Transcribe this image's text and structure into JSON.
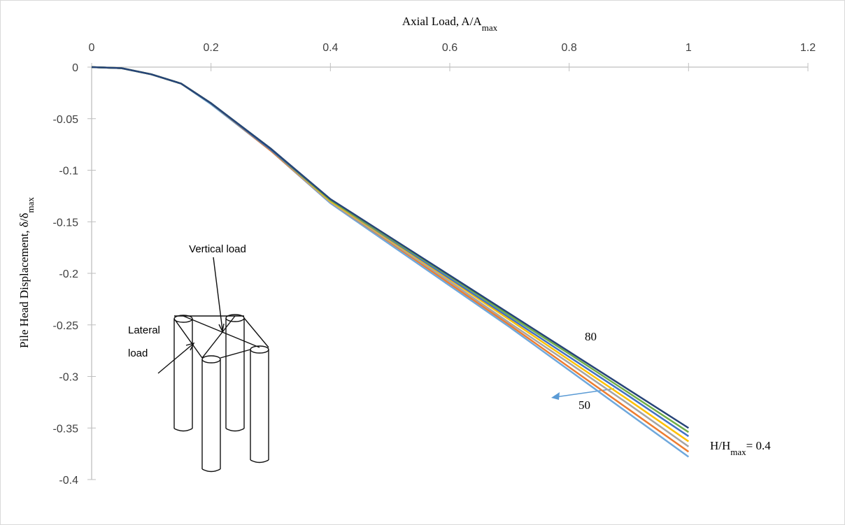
{
  "chart_data": {
    "type": "line",
    "x_label": {
      "text": "Axial Load, A/A",
      "sub": "max"
    },
    "y_label": {
      "text": "Pile Head Displacement, δ/δ",
      "sub": "max"
    },
    "x": [
      0,
      0.05,
      0.1,
      0.15,
      0.2,
      0.3,
      0.4,
      0.5,
      0.6,
      0.7,
      0.8,
      0.9,
      1.0
    ],
    "series": [
      {
        "color": "#6fa8dc",
        "values": [
          0,
          -0.001,
          -0.007,
          -0.016,
          -0.036,
          -0.081,
          -0.132,
          -0.172,
          -0.212,
          -0.252,
          -0.294,
          -0.336,
          -0.378
        ]
      },
      {
        "color": "#ed7d31",
        "values": [
          0,
          -0.001,
          -0.007,
          -0.016,
          -0.035,
          -0.081,
          -0.131,
          -0.17,
          -0.21,
          -0.25,
          -0.291,
          -0.332,
          -0.373
        ]
      },
      {
        "color": "#a5a5a5",
        "values": [
          0,
          -0.001,
          -0.007,
          -0.016,
          -0.035,
          -0.08,
          -0.131,
          -0.169,
          -0.208,
          -0.248,
          -0.287,
          -0.327,
          -0.368
        ]
      },
      {
        "color": "#ffc000",
        "values": [
          0,
          -0.001,
          -0.007,
          -0.016,
          -0.035,
          -0.08,
          -0.13,
          -0.168,
          -0.206,
          -0.245,
          -0.284,
          -0.323,
          -0.363
        ]
      },
      {
        "color": "#4472c4",
        "values": [
          0,
          -0.001,
          -0.007,
          -0.016,
          -0.035,
          -0.08,
          -0.129,
          -0.167,
          -0.205,
          -0.243,
          -0.281,
          -0.319,
          -0.358
        ]
      },
      {
        "color": "#70ad47",
        "values": [
          0,
          -0.001,
          -0.007,
          -0.016,
          -0.035,
          -0.079,
          -0.129,
          -0.166,
          -0.203,
          -0.241,
          -0.278,
          -0.316,
          -0.354
        ]
      },
      {
        "color": "#264478",
        "values": [
          0,
          -0.001,
          -0.007,
          -0.016,
          -0.035,
          -0.079,
          -0.128,
          -0.165,
          -0.202,
          -0.239,
          -0.276,
          -0.313,
          -0.35
        ]
      }
    ],
    "xlim": [
      0,
      1.2
    ],
    "xticks": [
      0,
      0.2,
      0.4,
      0.6,
      0.8,
      1,
      1.2
    ],
    "ylim": [
      -0.4,
      0
    ],
    "yticks": [
      0,
      -0.05,
      -0.1,
      -0.15,
      -0.2,
      -0.25,
      -0.3,
      -0.35,
      -0.4
    ],
    "annotations": [
      {
        "text": "80"
      },
      {
        "text": "50"
      },
      {
        "text": "H/H",
        "sub": "max",
        "after": "= 0.4"
      }
    ],
    "inset_labels": [
      "Vertical load",
      "Lateral",
      "load"
    ]
  }
}
